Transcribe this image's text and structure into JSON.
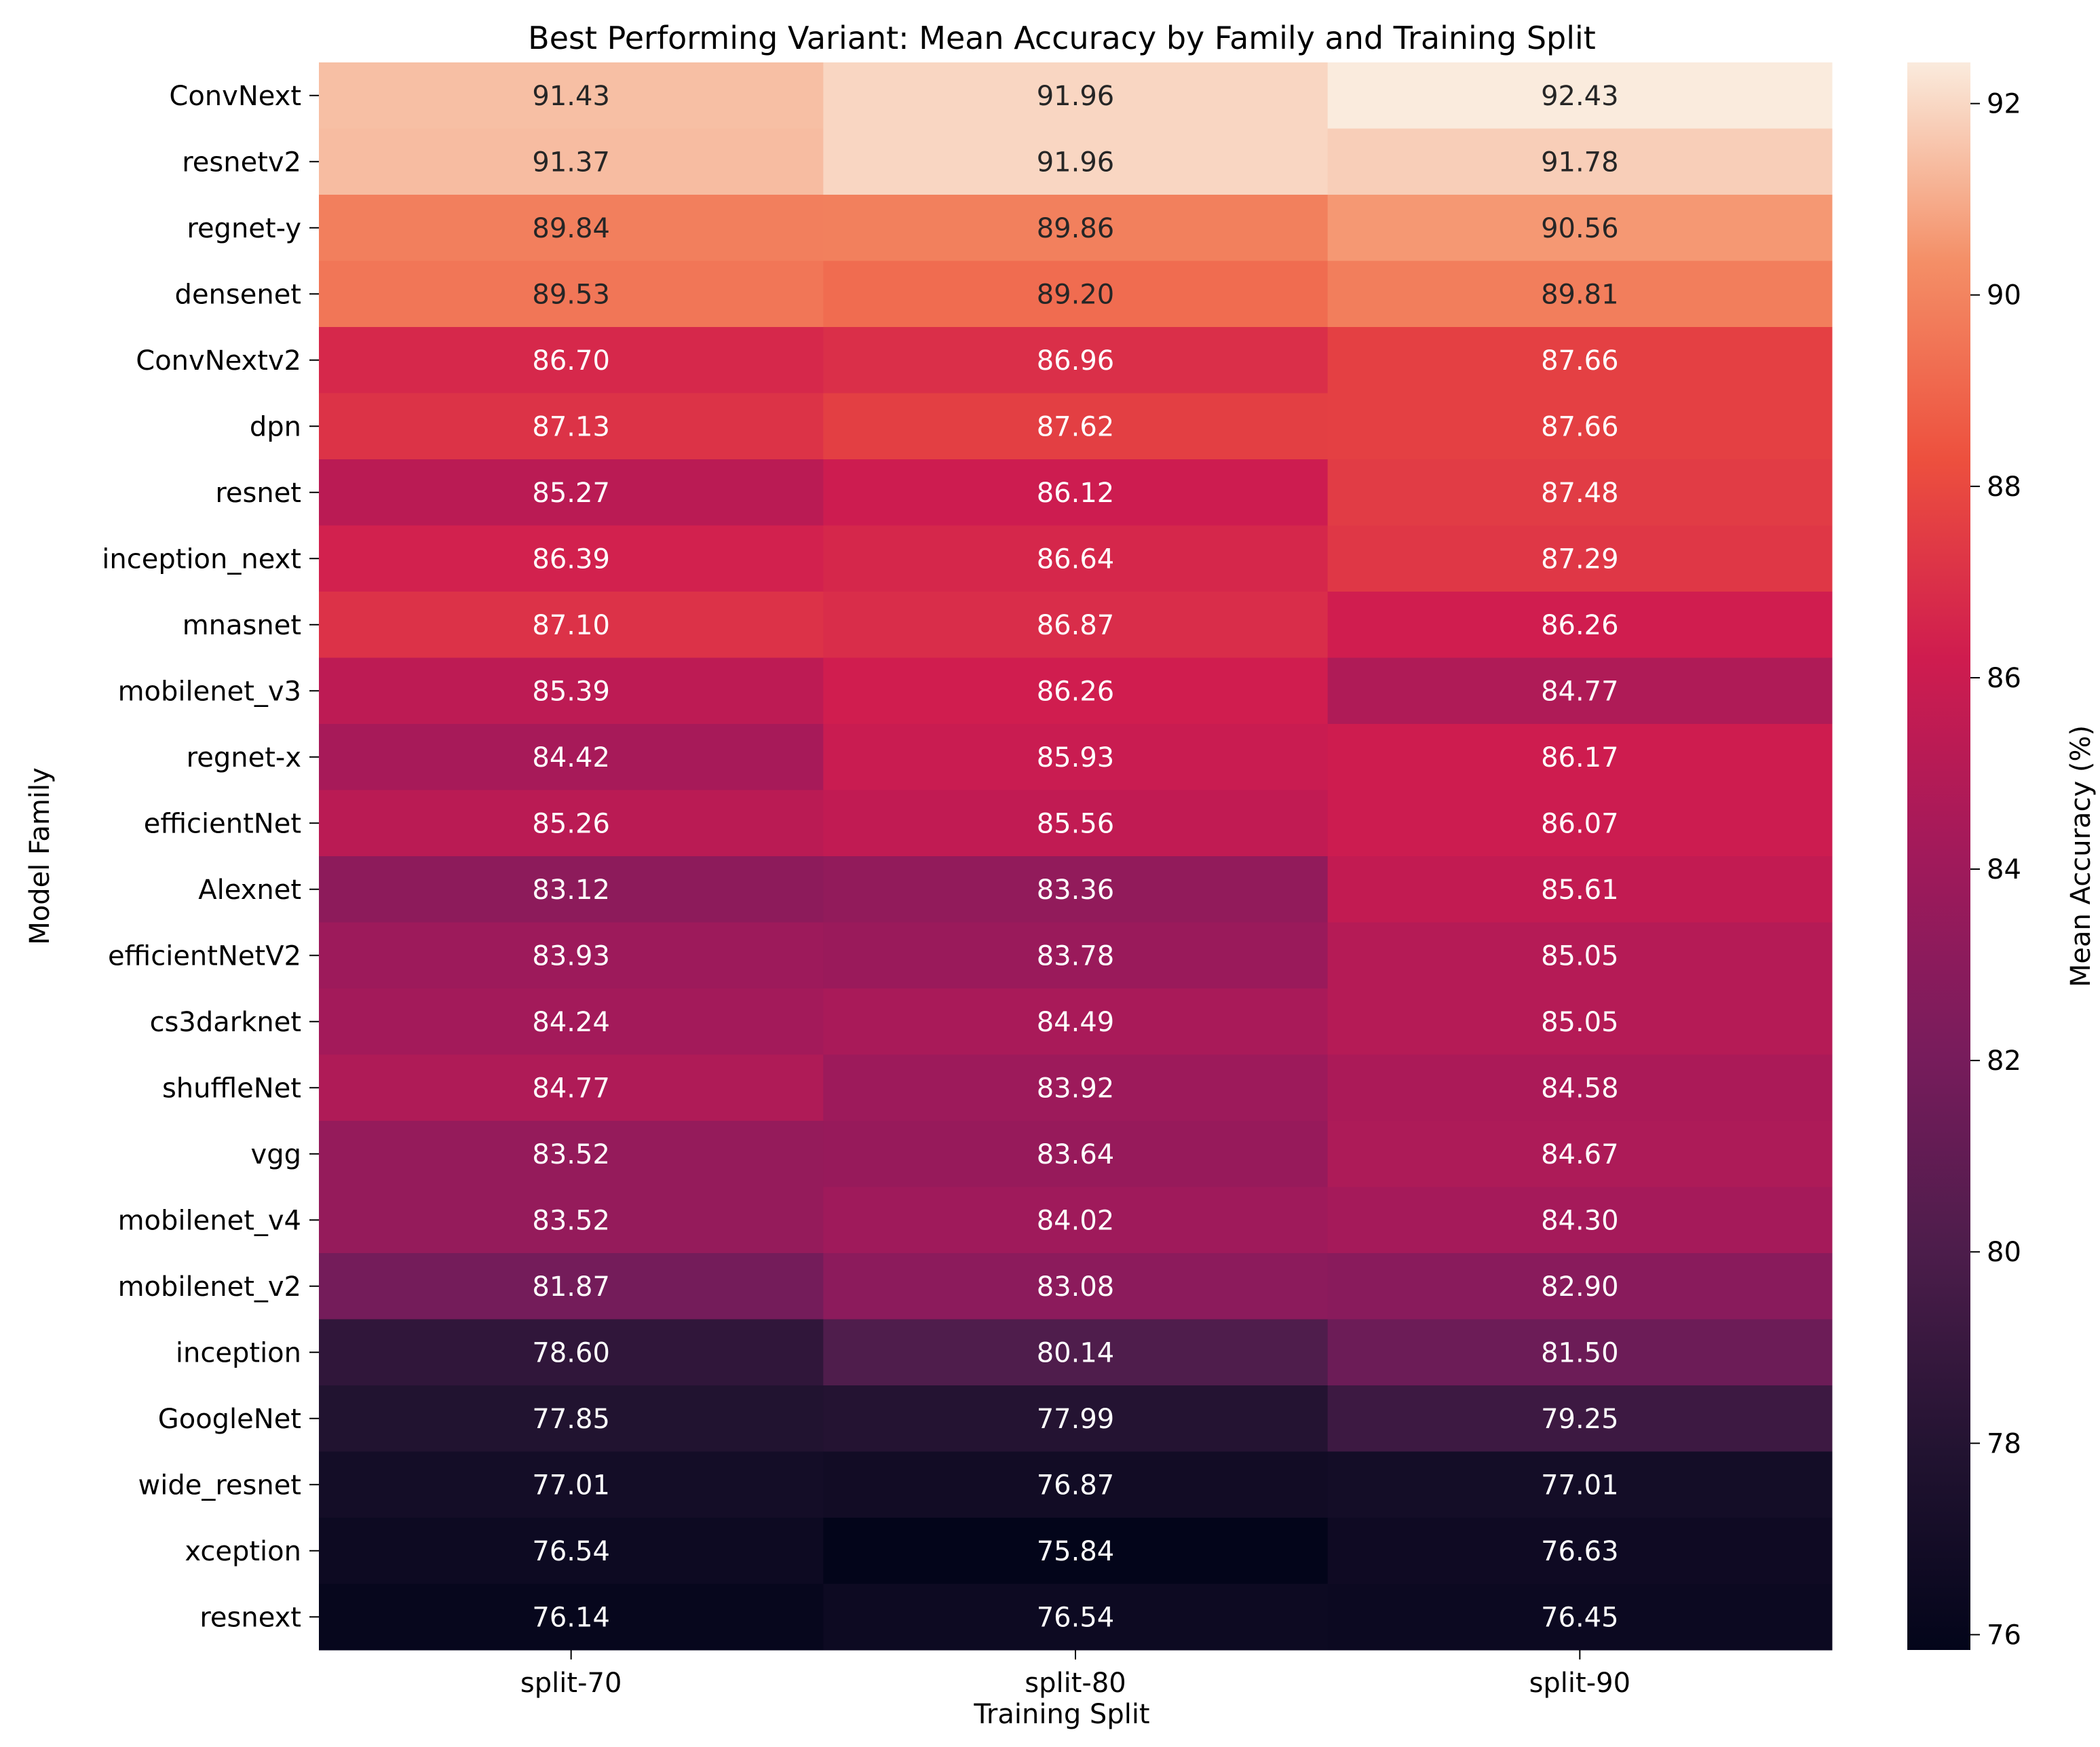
{
  "chart_data": {
    "type": "heatmap",
    "title": "Best Performing Variant: Mean Accuracy by Family and Training Split",
    "xlabel": "Training Split",
    "ylabel": "Model Family",
    "x_categories": [
      "split-70",
      "split-80",
      "split-90"
    ],
    "y_categories": [
      "ConvNext",
      "resnetv2",
      "regnet-y",
      "densenet",
      "ConvNextv2",
      "dpn",
      "resnet",
      "inception_next",
      "mnasnet",
      "mobilenet_v3",
      "regnet-x",
      "efficientNet",
      "Alexnet",
      "efficientNetV2",
      "cs3darknet",
      "shuffleNet",
      "vgg",
      "mobilenet_v4",
      "mobilenet_v2",
      "inception",
      "GoogleNet",
      "wide_resnet",
      "xception",
      "resnext"
    ],
    "values": [
      [
        91.43,
        91.96,
        92.43
      ],
      [
        91.37,
        91.96,
        91.78
      ],
      [
        89.84,
        89.86,
        90.56
      ],
      [
        89.53,
        89.2,
        89.81
      ],
      [
        86.7,
        86.96,
        87.66
      ],
      [
        87.13,
        87.62,
        87.66
      ],
      [
        85.27,
        86.12,
        87.48
      ],
      [
        86.39,
        86.64,
        87.29
      ],
      [
        87.1,
        86.87,
        86.26
      ],
      [
        85.39,
        86.26,
        84.77
      ],
      [
        84.42,
        85.93,
        86.17
      ],
      [
        85.26,
        85.56,
        86.07
      ],
      [
        83.12,
        83.36,
        85.61
      ],
      [
        83.93,
        83.78,
        85.05
      ],
      [
        84.24,
        84.49,
        85.05
      ],
      [
        84.77,
        83.92,
        84.58
      ],
      [
        83.52,
        83.64,
        84.67
      ],
      [
        83.52,
        84.02,
        84.3
      ],
      [
        81.87,
        83.08,
        82.9
      ],
      [
        78.6,
        80.14,
        81.5
      ],
      [
        77.85,
        77.99,
        79.25
      ],
      [
        77.01,
        76.87,
        77.01
      ],
      [
        76.54,
        75.84,
        76.63
      ],
      [
        76.14,
        76.54,
        76.45
      ]
    ],
    "value_format": "0.00",
    "colorbar": {
      "label": "Mean Accuracy (%)",
      "colormap": "rocket",
      "vmin": 75.84,
      "vmax": 92.43,
      "ticks": [
        76,
        78,
        80,
        82,
        84,
        86,
        88,
        90,
        92
      ]
    },
    "text_colors": {
      "dark_bg": "#ffffff",
      "light_bg": "#262626"
    }
  }
}
